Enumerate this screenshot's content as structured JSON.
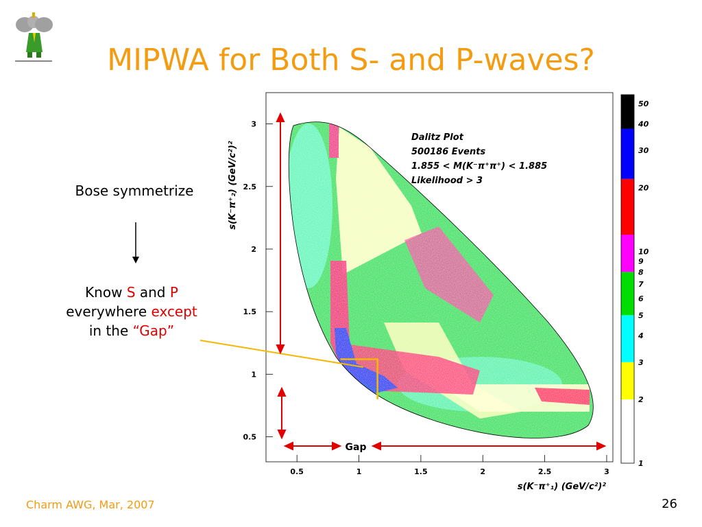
{
  "slide": {
    "title": "MIPWA for Both S- and P-waves?",
    "bose_text": "Bose symmetrize",
    "know_prefix": "Know ",
    "know_s": "S",
    "know_and": " and ",
    "know_p": "P",
    "everywhere": "everywhere ",
    "except": "except",
    "in_the": "in the ",
    "gap_quote": "“Gap”",
    "footer_left": "Charm AWG, Mar, 2007",
    "page_number": "26",
    "gap_label": "Gap"
  },
  "colors": {
    "title": "#f39c12",
    "highlight": "#e00000",
    "gap_box": "#f5b800",
    "arrow": "#e00000"
  },
  "chart_data": {
    "type": "heatmap",
    "title": "",
    "xlabel": "s(K⁻π⁺₁)  (GeV/c²)²",
    "ylabel": "s(K⁻π⁺₂)  (GeV/c²)²",
    "xlim": [
      0.25,
      3.05
    ],
    "ylim": [
      0.3,
      3.25
    ],
    "x_ticks": [
      "0.5",
      "1",
      "1.5",
      "2",
      "2.5",
      "3"
    ],
    "x_tick_values": [
      0.5,
      1,
      1.5,
      2,
      2.5,
      3
    ],
    "y_ticks": [
      "0.5",
      "1",
      "1.5",
      "2",
      "2.5",
      "3"
    ],
    "y_tick_values": [
      0.5,
      1,
      1.5,
      2,
      2.5,
      3
    ],
    "annotation_lines": [
      "Dalitz Plot",
      "500186 Events",
      "1.855 < M(K⁻π⁺π⁺) < 1.885",
      "Likelihood > 3"
    ],
    "colorbar": {
      "labels": [
        "1",
        "2",
        "3",
        "4",
        "5",
        "6",
        "7",
        "8",
        "9",
        "10",
        "20",
        "30",
        "40",
        "50"
      ],
      "bands": [
        {
          "from": 1,
          "to": 2,
          "color": "#ffffff"
        },
        {
          "from": 2,
          "to": 3,
          "color": "#ffff00"
        },
        {
          "from": 3,
          "to": 5,
          "color": "#00ffff"
        },
        {
          "from": 5,
          "to": 8,
          "color": "#00dd00"
        },
        {
          "from": 8,
          "to": 12,
          "color": "#ff00ff"
        },
        {
          "from": 12,
          "to": 22,
          "color": "#ff0000"
        },
        {
          "from": 22,
          "to": 38,
          "color": "#0000ff"
        },
        {
          "from": 38,
          "to": 55,
          "color": "#000000"
        }
      ]
    },
    "gap_region": {
      "x": [
        0.85,
        1.15
      ],
      "y": [
        0.8,
        1.12
      ]
    }
  }
}
